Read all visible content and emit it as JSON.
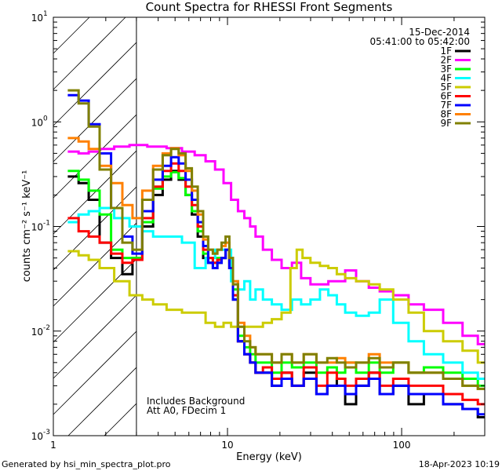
{
  "chart_data": {
    "type": "line",
    "title": "Count Spectra for RHESSI Front Segments",
    "xlabel": "Energy (keV)",
    "ylabel": "counts cm⁻² s⁻¹ keV⁻¹",
    "x_scale": "log",
    "y_scale": "log",
    "xlim": [
      1,
      300
    ],
    "ylim": [
      0.001,
      10
    ],
    "x_ticks": [
      {
        "value": 1,
        "label": "1"
      },
      {
        "value": 10,
        "label": "10"
      },
      {
        "value": 100,
        "label": "100"
      }
    ],
    "y_ticks": [
      {
        "value": 10,
        "base": "10",
        "exp": "1"
      },
      {
        "value": 1,
        "base": "10",
        "exp": "0"
      },
      {
        "value": 0.1,
        "base": "10",
        "exp": "-1"
      },
      {
        "value": 0.01,
        "base": "10",
        "exp": "-2"
      },
      {
        "value": 0.001,
        "base": "10",
        "exp": "-3"
      }
    ],
    "date": "15-Dec-2014",
    "time_range": "05:41:00 to 05:42:00",
    "annotation_lines": [
      "Includes Background",
      "Att A0, FDecim 1"
    ],
    "shaded_region_x": [
      1,
      3
    ],
    "footer_left": "Generated by hsi_min_spectra_plot.pro",
    "footer_right": "18-Apr-2023 10:19",
    "series": [
      {
        "name": "1F",
        "color": "#000000",
        "x": [
          1.3,
          1.5,
          1.7,
          2.0,
          2.3,
          2.7,
          3.0,
          3.5,
          4.0,
          4.5,
          5.0,
          5.5,
          6.0,
          6.5,
          7.0,
          7.5,
          8.0,
          8.5,
          9.0,
          9.5,
          10.0,
          10.5,
          11.0,
          12,
          13,
          14,
          15,
          17,
          19,
          22,
          25,
          30,
          35,
          40,
          45,
          50,
          60,
          70,
          80,
          100,
          120,
          150,
          200,
          250,
          300
        ],
        "y": [
          0.3,
          0.26,
          0.18,
          0.07,
          0.05,
          0.035,
          0.05,
          0.1,
          0.2,
          0.28,
          0.34,
          0.28,
          0.2,
          0.13,
          0.08,
          0.05,
          0.045,
          0.04,
          0.045,
          0.05,
          0.06,
          0.04,
          0.02,
          0.008,
          0.006,
          0.005,
          0.004,
          0.004,
          0.003,
          0.004,
          0.003,
          0.004,
          0.0025,
          0.003,
          0.0035,
          0.002,
          0.003,
          0.004,
          0.0025,
          0.003,
          0.002,
          0.0025,
          0.002,
          0.0018,
          0.0015
        ]
      },
      {
        "name": "2F",
        "color": "#ff00ff",
        "x": [
          1.3,
          1.5,
          1.7,
          2.0,
          2.5,
          3.0,
          4.0,
          5.0,
          6.0,
          7.0,
          8.0,
          9.0,
          10.0,
          11.0,
          12,
          13,
          14,
          15,
          17,
          19,
          22,
          25,
          28,
          32,
          36,
          40,
          45,
          50,
          60,
          70,
          80,
          100,
          120,
          150,
          200,
          250,
          300
        ],
        "y": [
          0.52,
          0.5,
          0.52,
          0.55,
          0.58,
          0.6,
          0.58,
          0.56,
          0.52,
          0.48,
          0.42,
          0.35,
          0.26,
          0.18,
          0.14,
          0.12,
          0.1,
          0.08,
          0.06,
          0.048,
          0.04,
          0.045,
          0.032,
          0.028,
          0.028,
          0.03,
          0.03,
          0.038,
          0.03,
          0.026,
          0.024,
          0.022,
          0.018,
          0.016,
          0.012,
          0.009,
          0.0075
        ]
      },
      {
        "name": "3F",
        "color": "#00ff00",
        "x": [
          1.3,
          1.5,
          1.7,
          2.0,
          2.3,
          2.7,
          3.0,
          3.5,
          4.0,
          4.5,
          5.0,
          5.5,
          6.0,
          6.5,
          7.0,
          7.5,
          8.0,
          8.5,
          9.0,
          9.5,
          10.0,
          10.5,
          11.0,
          12,
          13,
          14,
          15,
          17,
          19,
          22,
          25,
          30,
          35,
          40,
          45,
          50,
          60,
          70,
          80,
          100,
          120,
          150,
          200,
          250,
          300
        ],
        "y": [
          0.34,
          0.28,
          0.22,
          0.13,
          0.06,
          0.05,
          0.05,
          0.11,
          0.23,
          0.3,
          0.33,
          0.29,
          0.2,
          0.14,
          0.09,
          0.055,
          0.05,
          0.045,
          0.05,
          0.05,
          0.06,
          0.045,
          0.025,
          0.009,
          0.007,
          0.006,
          0.005,
          0.005,
          0.004,
          0.005,
          0.0045,
          0.005,
          0.004,
          0.0045,
          0.004,
          0.005,
          0.004,
          0.005,
          0.004,
          0.005,
          0.004,
          0.0045,
          0.004,
          0.0035,
          0.003
        ]
      },
      {
        "name": "4F",
        "color": "#00ffff",
        "x": [
          1.3,
          1.5,
          1.7,
          2.0,
          2.5,
          3.0,
          3.5,
          4.0,
          5.0,
          6.0,
          7.0,
          8.0,
          9.0,
          10.0,
          11.0,
          12,
          13,
          14,
          15,
          17,
          19,
          22,
          25,
          28,
          32,
          36,
          40,
          45,
          50,
          60,
          70,
          80,
          100,
          120,
          150,
          200,
          250,
          300
        ],
        "y": [
          0.11,
          0.13,
          0.14,
          0.15,
          0.12,
          0.1,
          0.09,
          0.08,
          0.08,
          0.07,
          0.04,
          0.05,
          0.06,
          0.06,
          0.03,
          0.025,
          0.03,
          0.02,
          0.025,
          0.02,
          0.018,
          0.016,
          0.02,
          0.018,
          0.02,
          0.025,
          0.022,
          0.018,
          0.015,
          0.014,
          0.015,
          0.02,
          0.012,
          0.008,
          0.006,
          0.005,
          0.004,
          0.0035
        ]
      },
      {
        "name": "5F",
        "color": "#cccc00",
        "x": [
          1.3,
          1.5,
          1.7,
          2.0,
          2.5,
          3.0,
          3.5,
          4.0,
          5.0,
          6.0,
          7.0,
          8.0,
          9.0,
          10.0,
          11.0,
          12,
          13,
          14,
          15,
          17,
          19,
          22,
          24,
          26,
          28,
          32,
          36,
          40,
          45,
          50,
          60,
          70,
          80,
          100,
          120,
          150,
          200,
          250,
          300
        ],
        "y": [
          0.058,
          0.053,
          0.048,
          0.04,
          0.03,
          0.022,
          0.02,
          0.018,
          0.016,
          0.015,
          0.015,
          0.012,
          0.011,
          0.012,
          0.011,
          0.011,
          0.011,
          0.011,
          0.011,
          0.012,
          0.013,
          0.015,
          0.04,
          0.06,
          0.05,
          0.045,
          0.042,
          0.04,
          0.035,
          0.032,
          0.03,
          0.028,
          0.025,
          0.02,
          0.015,
          0.01,
          0.008,
          0.0065,
          0.005
        ]
      },
      {
        "name": "6F",
        "color": "#ff0000",
        "x": [
          1.3,
          1.5,
          1.7,
          2.0,
          2.3,
          2.7,
          3.0,
          3.5,
          4.0,
          4.5,
          5.0,
          5.5,
          6.0,
          6.5,
          7.0,
          7.5,
          8.0,
          8.5,
          9.0,
          9.5,
          10.0,
          10.5,
          11.0,
          12,
          13,
          14,
          15,
          17,
          19,
          22,
          25,
          30,
          35,
          40,
          45,
          50,
          60,
          70,
          80,
          100,
          120,
          150,
          200,
          250,
          300
        ],
        "y": [
          0.12,
          0.09,
          0.08,
          0.07,
          0.055,
          0.045,
          0.048,
          0.12,
          0.24,
          0.34,
          0.4,
          0.34,
          0.24,
          0.16,
          0.1,
          0.06,
          0.05,
          0.045,
          0.048,
          0.05,
          0.06,
          0.04,
          0.022,
          0.008,
          0.006,
          0.005,
          0.004,
          0.0045,
          0.0035,
          0.004,
          0.003,
          0.0045,
          0.003,
          0.004,
          0.0035,
          0.003,
          0.0035,
          0.004,
          0.003,
          0.0035,
          0.003,
          0.003,
          0.0025,
          0.0022,
          0.002
        ]
      },
      {
        "name": "7F",
        "color": "#0000ff",
        "x": [
          1.3,
          1.5,
          1.7,
          2.0,
          2.3,
          2.7,
          3.0,
          3.5,
          4.0,
          4.5,
          5.0,
          5.5,
          6.0,
          6.5,
          7.0,
          7.5,
          8.0,
          8.5,
          9.0,
          9.5,
          10.0,
          10.5,
          11.0,
          12,
          13,
          14,
          15,
          17,
          19,
          22,
          25,
          30,
          35,
          40,
          45,
          50,
          60,
          70,
          80,
          100,
          120,
          150,
          200,
          250,
          300
        ],
        "y": [
          1.8,
          1.6,
          0.95,
          0.5,
          0.15,
          0.08,
          0.055,
          0.14,
          0.28,
          0.38,
          0.46,
          0.4,
          0.28,
          0.18,
          0.11,
          0.065,
          0.045,
          0.04,
          0.045,
          0.05,
          0.06,
          0.04,
          0.02,
          0.008,
          0.006,
          0.005,
          0.004,
          0.004,
          0.003,
          0.0035,
          0.003,
          0.0035,
          0.0025,
          0.003,
          0.003,
          0.0025,
          0.003,
          0.0035,
          0.0025,
          0.003,
          0.0025,
          0.0025,
          0.002,
          0.0018,
          0.0016
        ]
      },
      {
        "name": "8F",
        "color": "#ff8000",
        "x": [
          1.3,
          1.5,
          1.7,
          2.0,
          2.3,
          2.7,
          3.0,
          3.5,
          4.0,
          4.5,
          5.0,
          5.5,
          6.0,
          6.5,
          7.0,
          7.5,
          8.0,
          8.5,
          9.0,
          9.5,
          10.0,
          10.5,
          11.0,
          12,
          13,
          14,
          15,
          17,
          19,
          22,
          25,
          30,
          35,
          40,
          45,
          50,
          60,
          70,
          80,
          100,
          120,
          150,
          200,
          250,
          300
        ],
        "y": [
          0.7,
          0.65,
          0.55,
          0.38,
          0.26,
          0.16,
          0.12,
          0.22,
          0.38,
          0.5,
          0.56,
          0.48,
          0.34,
          0.22,
          0.13,
          0.075,
          0.06,
          0.055,
          0.06,
          0.065,
          0.07,
          0.05,
          0.03,
          0.012,
          0.009,
          0.007,
          0.006,
          0.006,
          0.005,
          0.006,
          0.005,
          0.006,
          0.005,
          0.005,
          0.0055,
          0.005,
          0.005,
          0.006,
          0.005,
          0.005,
          0.004,
          0.004,
          0.0035,
          0.003,
          0.0028
        ]
      },
      {
        "name": "9F",
        "color": "#808000",
        "x": [
          1.3,
          1.5,
          1.7,
          2.0,
          2.3,
          2.7,
          3.0,
          3.5,
          4.0,
          4.5,
          5.0,
          5.5,
          6.0,
          6.5,
          7.0,
          7.5,
          8.0,
          8.5,
          9.0,
          9.5,
          10.0,
          10.5,
          11.0,
          12,
          13,
          14,
          15,
          17,
          19,
          22,
          25,
          30,
          35,
          40,
          45,
          50,
          60,
          70,
          80,
          100,
          120,
          150,
          200,
          250,
          300
        ],
        "y": [
          2.0,
          1.5,
          0.9,
          0.35,
          0.15,
          0.07,
          0.06,
          0.18,
          0.35,
          0.48,
          0.55,
          0.5,
          0.36,
          0.24,
          0.14,
          0.08,
          0.06,
          0.055,
          0.06,
          0.07,
          0.08,
          0.05,
          0.028,
          0.011,
          0.008,
          0.007,
          0.006,
          0.006,
          0.005,
          0.006,
          0.005,
          0.006,
          0.005,
          0.0055,
          0.005,
          0.0045,
          0.005,
          0.0055,
          0.0045,
          0.005,
          0.004,
          0.004,
          0.0035,
          0.003,
          0.0028
        ]
      }
    ]
  }
}
